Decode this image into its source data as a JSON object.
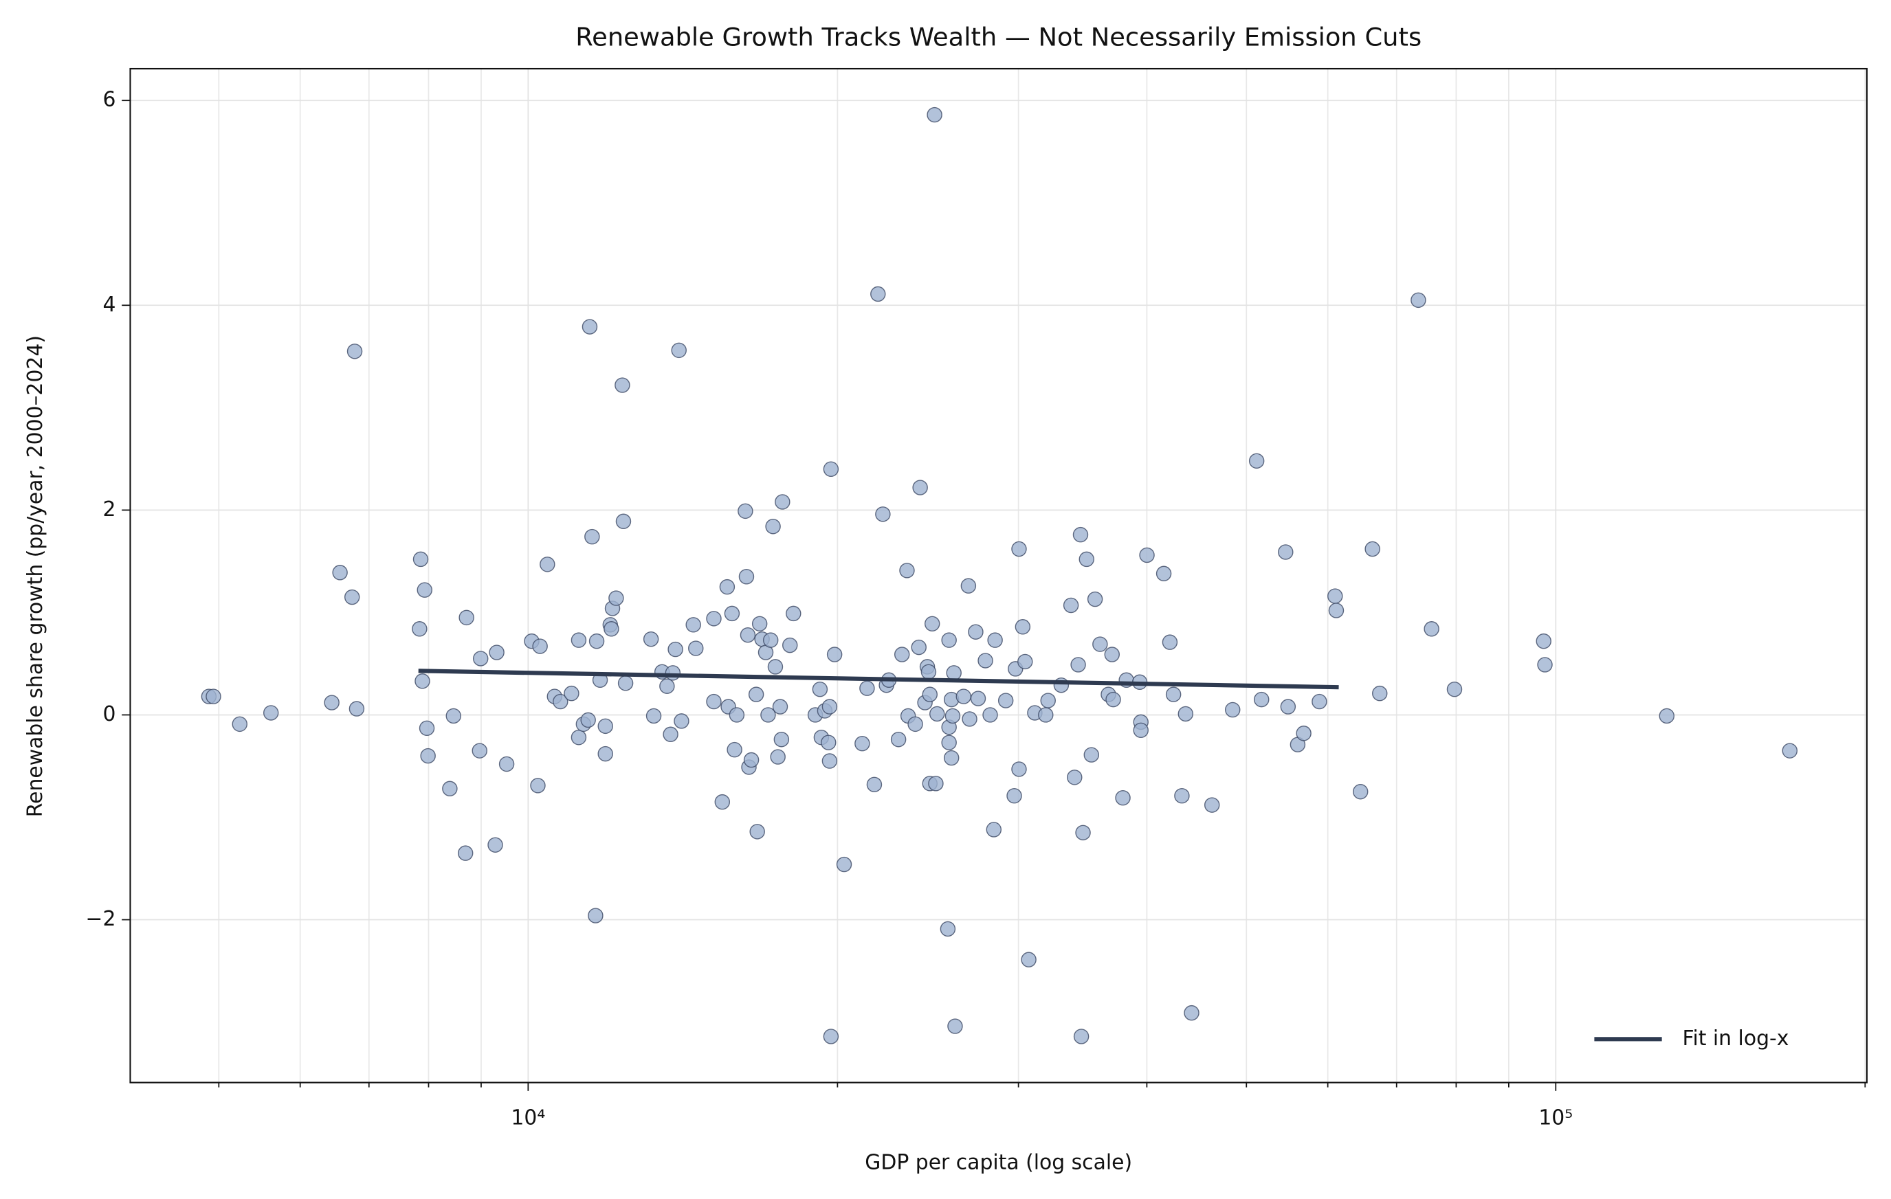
{
  "chart_data": {
    "type": "scatter",
    "title": "Renewable Growth Tracks Wealth — Not Necessarily Emission Cuts",
    "x_label": "GDP per capita (log scale)",
    "y_label": "Renewable share growth (pp/year, 2000–2024)",
    "xscale": "log",
    "xlim": [
      4100,
      200800
    ],
    "ylim": [
      -3.59,
      6.31
    ],
    "xticks": [
      {
        "value": 10000,
        "label": "10⁴"
      },
      {
        "value": 100000,
        "label": "10⁵"
      }
    ],
    "xminorticks": [
      5000,
      6000,
      7000,
      8000,
      9000,
      20000,
      30000,
      40000,
      50000,
      60000,
      70000,
      80000,
      90000,
      200000
    ],
    "yticks": [
      {
        "value": -2,
        "label": "−2"
      },
      0,
      2,
      4,
      6
    ],
    "grid": true,
    "legend": "lower right",
    "series": [
      {
        "type": "scatter",
        "color": "#9fb3d1",
        "edgecolor": "#3b4763",
        "x": [
          4890,
          4940,
          5240,
          5620,
          6440,
          6560,
          6740,
          6780,
          6810,
          7840,
          7860,
          7890,
          7930,
          7970,
          7990,
          8390,
          8460,
          8690,
          8710,
          8970,
          8990,
          9290,
          9320,
          9530,
          10080,
          10220,
          10270,
          10440,
          10610,
          10750,
          11020,
          11200,
          11200,
          11320,
          11440,
          11480,
          11540,
          11630,
          11660,
          11750,
          11890,
          11890,
          12020,
          12050,
          12080,
          12180,
          12350,
          12380,
          12440,
          13170,
          13250,
          13500,
          13650,
          13760,
          13830,
          13910,
          14020,
          14100,
          14480,
          14560,
          15160,
          15160,
          15450,
          15620,
          15660,
          15790,
          15880,
          15960,
          16270,
          16310,
          16360,
          16400,
          16490,
          16670,
          16710,
          16800,
          16890,
          17030,
          17120,
          17220,
          17310,
          17400,
          17500,
          17590,
          17640,
          17680,
          17980,
          18120,
          19030,
          19230,
          19290,
          19440,
          19600,
          19650,
          19710,
          19710,
          19650,
          19870,
          20300,
          21140,
          21370,
          21720,
          21900,
          22140,
          22320,
          22440,
          22930,
          23110,
          23370,
          23430,
          23810,
          24000,
          24070,
          24330,
          24460,
          24530,
          24600,
          24600,
          24730,
          24860,
          24930,
          25000,
          25610,
          25680,
          25680,
          25680,
          25820,
          25960,
          25890,
          25820,
          26030,
          26530,
          26820,
          26890,
          27260,
          27410,
          27860,
          28160,
          28390,
          28470,
          29160,
          29720,
          29800,
          30040,
          30040,
          30290,
          30450,
          30700,
          31120,
          31890,
          32060,
          33020,
          33750,
          34020,
          34300,
          34480,
          34540,
          34670,
          34950,
          35330,
          35620,
          36020,
          36700,
          37000,
          37100,
          37910,
          38210,
          39370,
          39470,
          39470,
          40010,
          41550,
          42120,
          42460,
          43270,
          43630,
          44220,
          46290,
          48480,
          51160,
          51720,
          54590,
          54890,
          56090,
          56850,
          58880,
          60990,
          61150,
          64560,
          66320,
          67410,
          73500,
          75710,
          79700,
          97330,
          97600,
          128240,
          168950
        ],
        "values": [
          0.18,
          0.18,
          -0.09,
          0.02,
          0.12,
          1.39,
          1.15,
          3.55,
          0.06,
          0.84,
          1.52,
          0.33,
          1.22,
          -0.13,
          -0.4,
          -0.72,
          -0.01,
          -1.35,
          0.95,
          -0.35,
          0.55,
          -1.27,
          0.61,
          -0.48,
          0.72,
          -0.69,
          0.67,
          1.47,
          0.18,
          0.13,
          0.21,
          0.73,
          -0.22,
          -0.09,
          -0.05,
          3.79,
          1.74,
          -1.96,
          0.72,
          0.34,
          -0.11,
          -0.38,
          0.88,
          0.84,
          1.04,
          1.14,
          3.22,
          1.89,
          0.31,
          0.74,
          -0.01,
          0.42,
          0.28,
          -0.19,
          0.41,
          0.64,
          3.56,
          -0.06,
          0.88,
          0.65,
          0.94,
          0.13,
          -0.85,
          1.25,
          0.08,
          0.99,
          -0.34,
          0.0,
          1.99,
          1.35,
          0.78,
          -0.51,
          -0.44,
          0.2,
          -1.14,
          0.89,
          0.74,
          0.61,
          0.0,
          0.73,
          1.84,
          0.47,
          -0.41,
          0.08,
          -0.24,
          2.08,
          0.68,
          0.99,
          0.0,
          0.25,
          -0.22,
          0.04,
          -0.27,
          0.08,
          2.4,
          -3.14,
          -0.45,
          0.59,
          -1.46,
          -0.28,
          0.26,
          -0.68,
          4.11,
          1.96,
          0.29,
          0.34,
          -0.24,
          0.59,
          1.41,
          -0.01,
          -0.09,
          0.66,
          2.22,
          0.12,
          0.47,
          0.42,
          0.2,
          -0.67,
          0.89,
          5.86,
          -0.67,
          0.01,
          -2.09,
          0.73,
          -0.12,
          -0.27,
          0.15,
          0.41,
          -0.01,
          -0.42,
          -3.04,
          0.18,
          1.26,
          -0.04,
          0.81,
          0.16,
          0.53,
          0.0,
          -1.12,
          0.73,
          0.14,
          -0.79,
          0.45,
          1.62,
          -0.53,
          0.86,
          0.52,
          -2.39,
          0.02,
          0.0,
          0.14,
          0.29,
          1.07,
          -0.61,
          0.49,
          1.76,
          -3.14,
          -1.15,
          1.52,
          -0.39,
          1.13,
          0.69,
          0.2,
          0.59,
          0.15,
          -0.81,
          0.34,
          0.32,
          -0.07,
          -0.15,
          1.56,
          1.38,
          0.71,
          0.2,
          -0.79,
          0.01,
          -2.91,
          -0.88,
          0.05,
          2.48,
          0.15,
          1.59,
          0.08,
          -0.29,
          -0.18,
          0.13,
          1.16,
          1.02,
          -0.75,
          1.62,
          0.21,
          4.05,
          0.84,
          0.25,
          0.72,
          0.49,
          -0.01,
          -0.35
        ]
      },
      {
        "type": "line",
        "name": "Fit in log-x",
        "color": "#2e3a50",
        "x": [
          7820,
          61490
        ],
        "values": [
          0.43,
          0.27
        ]
      }
    ]
  }
}
